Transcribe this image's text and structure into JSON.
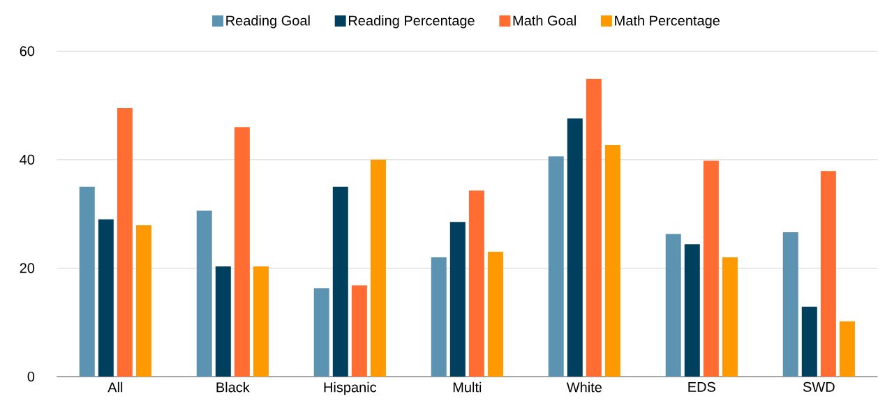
{
  "chart_data": {
    "type": "bar",
    "categories": [
      "All",
      "Black",
      "Hispanic",
      "Multi",
      "White",
      "EDS",
      "SWD"
    ],
    "series": [
      {
        "name": "Reading Goal",
        "color": "#5b93b0",
        "values": [
          35.0,
          30.6,
          16.3,
          22.0,
          40.6,
          26.3,
          26.6
        ]
      },
      {
        "name": "Reading Percentage",
        "color": "#00405e",
        "values": [
          29.0,
          20.3,
          35.0,
          28.5,
          47.6,
          24.4,
          12.9
        ]
      },
      {
        "name": "Math Goal",
        "color": "#ff6d33",
        "values": [
          49.5,
          46.0,
          16.8,
          34.3,
          54.9,
          39.8,
          37.9
        ]
      },
      {
        "name": "Math Percentage",
        "color": "#ff9900",
        "values": [
          27.9,
          20.3,
          40.0,
          23.0,
          42.7,
          22.0,
          10.2
        ]
      }
    ],
    "ylim": [
      0,
      60
    ],
    "yticks": [
      0,
      20,
      40,
      60
    ],
    "grid": "y",
    "legend": "top"
  }
}
